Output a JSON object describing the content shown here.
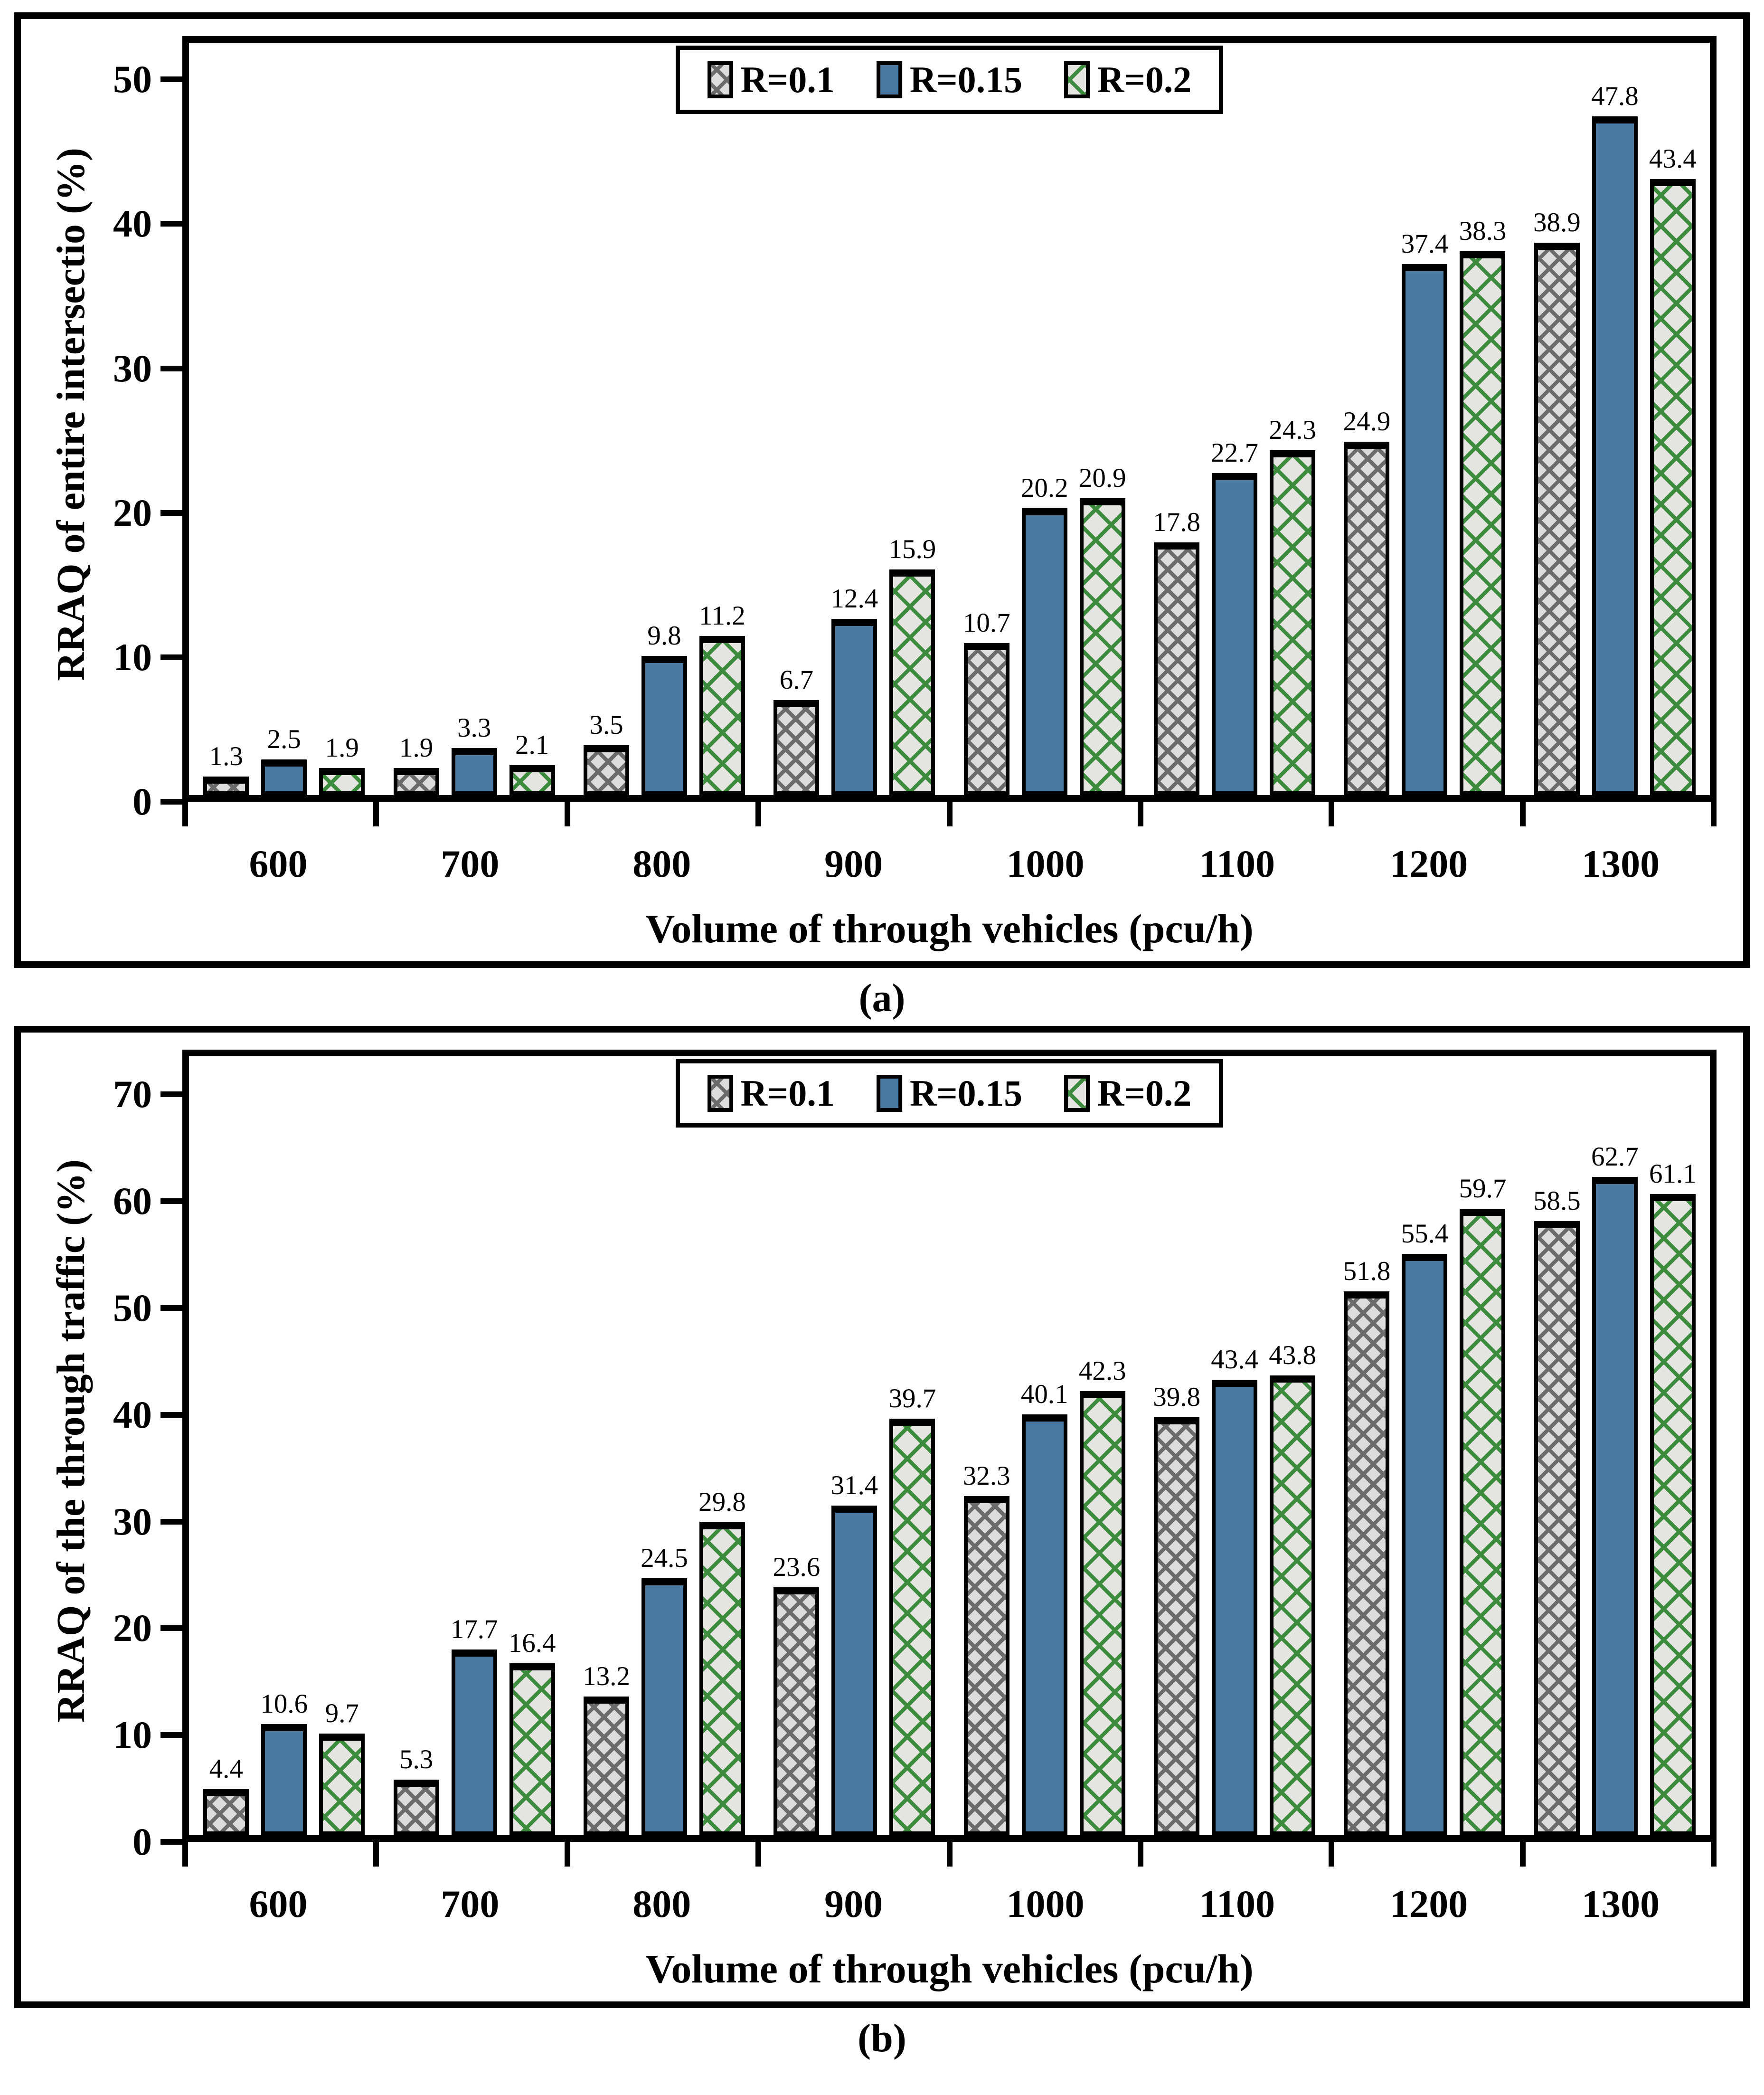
{
  "figure": {
    "caption_a": "(a)",
    "caption_b": "(b)"
  },
  "colors": {
    "series_blue": "#4A79A1",
    "series_gray_bg": "#DCDCDC",
    "series_gray_fg": "#6B6B6B",
    "series_green_bg": "#E4E4E1",
    "series_green_fg": "#3D8C3D",
    "axis": "#000000"
  },
  "chart_data": [
    {
      "type": "bar",
      "title": "",
      "ylabel": "RRAQ of entire intersectio (%)",
      "xlabel": "Volume of through vehicles (pcu/h)",
      "categories": [
        "600",
        "700",
        "800",
        "900",
        "1000",
        "1100",
        "1200",
        "1300"
      ],
      "series": [
        {
          "name": "R=0.1",
          "values": [
            1.3,
            1.9,
            3.5,
            6.7,
            10.7,
            17.8,
            24.9,
            38.9
          ]
        },
        {
          "name": "R=0.15",
          "values": [
            2.5,
            3.3,
            9.8,
            12.4,
            20.2,
            22.7,
            37.4,
            47.8
          ]
        },
        {
          "name": "R=0.2",
          "values": [
            1.9,
            2.1,
            11.2,
            15.9,
            20.9,
            24.3,
            38.3,
            43.4
          ]
        }
      ],
      "ylim": [
        0,
        50
      ],
      "yticks": [
        0,
        10,
        20,
        30,
        40,
        50
      ],
      "grid": "off",
      "legend_position": "top-center"
    },
    {
      "type": "bar",
      "title": "",
      "ylabel": "RRAQ of the through traffic (%)",
      "xlabel": "Volume of through vehicles (pcu/h)",
      "categories": [
        "600",
        "700",
        "800",
        "900",
        "1000",
        "1100",
        "1200",
        "1300"
      ],
      "series": [
        {
          "name": "R=0.1",
          "values": [
            4.4,
            5.3,
            13.2,
            23.6,
            32.3,
            39.8,
            51.8,
            58.5
          ]
        },
        {
          "name": "R=0.15",
          "values": [
            10.6,
            17.7,
            24.5,
            31.4,
            40.1,
            43.4,
            55.4,
            62.7
          ]
        },
        {
          "name": "R=0.2",
          "values": [
            9.7,
            16.4,
            29.8,
            39.7,
            42.3,
            43.8,
            59.7,
            61.1
          ]
        }
      ],
      "ylim": [
        0,
        70
      ],
      "yticks": [
        0,
        10,
        20,
        30,
        40,
        50,
        60,
        70
      ],
      "grid": "off",
      "legend_position": "top-center"
    }
  ]
}
